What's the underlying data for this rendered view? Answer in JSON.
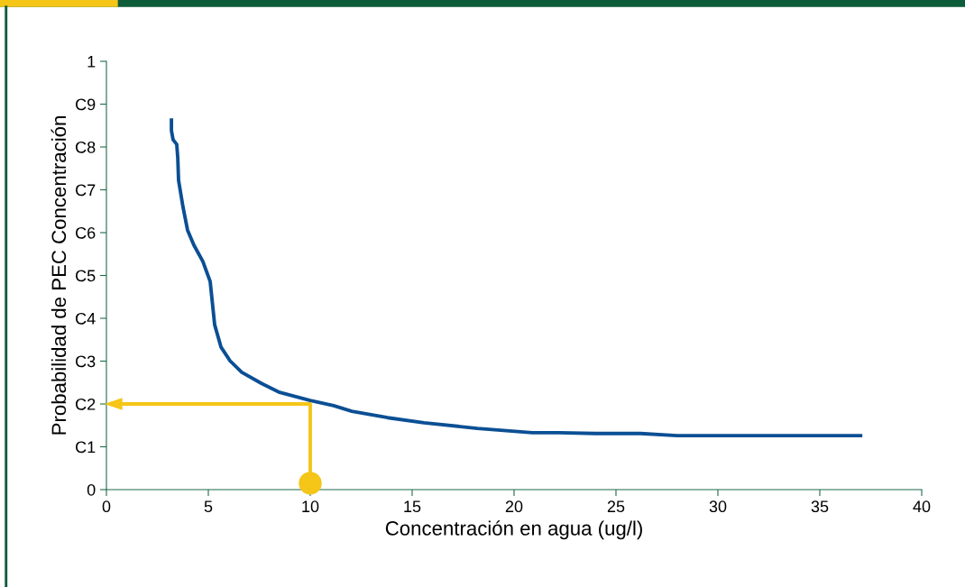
{
  "chart_data": {
    "type": "line",
    "xlabel": "Concentración en agua (ug/l)",
    "ylabel": "Probabilidad de PEC Concentración",
    "xlim": [
      0,
      40
    ],
    "xticks": [
      0,
      5,
      10,
      15,
      20,
      25,
      30,
      35,
      40
    ],
    "ylim": [
      0,
      1
    ],
    "yticks": [
      0,
      {
        "value": 0.1,
        "label": "C1"
      },
      {
        "value": 0.2,
        "label": "C2"
      },
      {
        "value": 0.3,
        "label": "C3"
      },
      {
        "value": 0.4,
        "label": "C4"
      },
      {
        "value": 0.5,
        "label": "C5"
      },
      {
        "value": 0.6,
        "label": "C6"
      },
      {
        "value": 0.7,
        "label": "C7"
      },
      {
        "value": 0.8,
        "label": "C8"
      },
      {
        "value": 0.9,
        "label": "C9"
      },
      1
    ],
    "grid": false,
    "legend": false,
    "series": [
      {
        "color": "#0b4f94",
        "x": [
          3.19,
          3.19,
          3.27,
          3.45,
          3.5,
          3.54,
          3.76,
          3.98,
          4.29,
          4.73,
          5.09,
          5.31,
          5.62,
          6.06,
          6.64,
          7.61,
          8.5,
          10,
          11.15,
          12.04,
          13.8,
          15.58,
          18.2,
          20.9,
          22.2,
          24,
          26.2,
          28,
          37
        ],
        "values": [
          0.863,
          0.838,
          0.817,
          0.806,
          0.775,
          0.722,
          0.659,
          0.606,
          0.571,
          0.533,
          0.486,
          0.385,
          0.333,
          0.301,
          0.274,
          0.248,
          0.227,
          0.208,
          0.196,
          0.183,
          0.168,
          0.156,
          0.143,
          0.133,
          0.133,
          0.131,
          0.131,
          0.126,
          0.126
        ]
      },
      {
        "color": "#f5c518",
        "x": [
          10,
          10,
          0.3
        ],
        "values": [
          0.015,
          0.2,
          0.2
        ]
      },
      {
        "type": "scatter",
        "marker": "circle",
        "color": "#f5c518",
        "x": [
          10
        ],
        "values": [
          0.015
        ]
      }
    ]
  }
}
